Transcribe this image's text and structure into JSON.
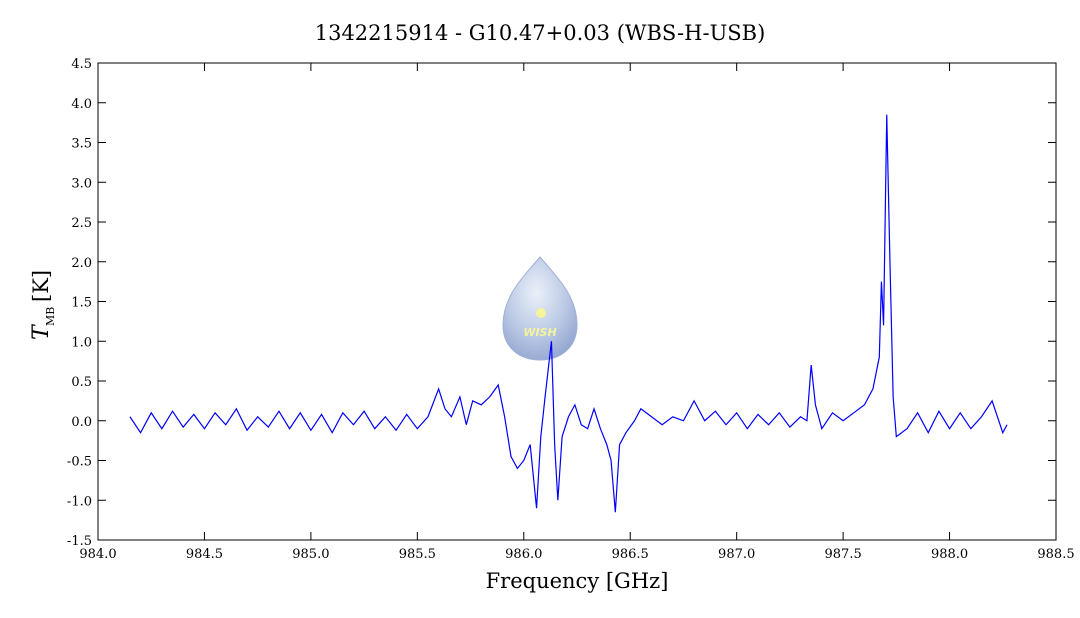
{
  "chart_data": {
    "type": "line",
    "title": "1342215914 - G10.47+0.03 (WBS-H-USB)",
    "x_label": "Frequency [GHz]",
    "y_label": {
      "symbol": "T",
      "subscript": "MB",
      "unit": "[K]"
    },
    "watermark": "WISH",
    "xlim": [
      984.0,
      988.5
    ],
    "ylim": [
      -1.5,
      4.5
    ],
    "xticks": [
      {
        "value": 984.0,
        "label": "984.0"
      },
      984.5,
      {
        "value": 985.0,
        "label": "985.0"
      },
      985.5,
      {
        "value": 986.0,
        "label": "986.0"
      },
      986.5,
      {
        "value": 987.0,
        "label": "987.0"
      },
      987.5,
      {
        "value": 988.0,
        "label": "988.0"
      },
      988.5
    ],
    "yticks": [
      4.5,
      {
        "value": 4.0,
        "label": "4.0"
      },
      3.5,
      {
        "value": 3.0,
        "label": "3.0"
      },
      2.5,
      {
        "value": 2.0,
        "label": "2.0"
      },
      1.5,
      {
        "value": 1.0,
        "label": "1.0"
      },
      0.5,
      {
        "value": 0.0,
        "label": "0.0"
      },
      -0.5,
      {
        "value": -1.0,
        "label": "-1.0"
      },
      -1.5
    ],
    "x": [
      984.15,
      984.2,
      984.25,
      984.3,
      984.35,
      984.4,
      984.45,
      984.5,
      984.55,
      984.6,
      984.65,
      984.7,
      984.75,
      984.8,
      984.85,
      984.9,
      984.95,
      985.0,
      985.05,
      985.1,
      985.15,
      985.2,
      985.25,
      985.3,
      985.35,
      985.4,
      985.45,
      985.5,
      985.55,
      985.6,
      985.63,
      985.66,
      985.7,
      985.73,
      985.76,
      985.8,
      985.84,
      985.88,
      985.91,
      985.94,
      985.97,
      986.0,
      986.03,
      986.06,
      986.08,
      986.1,
      986.13,
      986.145,
      986.16,
      986.18,
      986.21,
      986.24,
      986.27,
      986.3,
      986.33,
      986.36,
      986.39,
      986.41,
      986.43,
      986.45,
      986.48,
      986.52,
      986.55,
      986.6,
      986.65,
      986.7,
      986.75,
      986.8,
      986.85,
      986.9,
      986.95,
      987.0,
      987.05,
      987.1,
      987.15,
      987.2,
      987.25,
      987.3,
      987.33,
      987.35,
      987.37,
      987.4,
      987.45,
      987.5,
      987.55,
      987.6,
      987.64,
      987.67,
      987.68,
      987.69,
      987.705,
      987.72,
      987.735,
      987.75,
      987.8,
      987.85,
      987.9,
      987.95,
      988.0,
      988.05,
      988.1,
      988.15,
      988.2,
      988.25,
      988.27
    ],
    "series": [
      {
        "name": "WBS-H-USB",
        "color": "#0000ff",
        "values": [
          0.05,
          -0.15,
          0.1,
          -0.1,
          0.12,
          -0.08,
          0.08,
          -0.1,
          0.1,
          -0.05,
          0.15,
          -0.12,
          0.05,
          -0.08,
          0.12,
          -0.1,
          0.1,
          -0.12,
          0.08,
          -0.15,
          0.1,
          -0.05,
          0.12,
          -0.1,
          0.05,
          -0.12,
          0.08,
          -0.1,
          0.05,
          0.4,
          0.15,
          0.05,
          0.3,
          -0.05,
          0.25,
          0.2,
          0.3,
          0.45,
          0.05,
          -0.45,
          -0.6,
          -0.5,
          -0.3,
          -1.1,
          -0.2,
          0.3,
          1.0,
          -0.3,
          -1.0,
          -0.2,
          0.05,
          0.2,
          -0.05,
          -0.1,
          0.15,
          -0.1,
          -0.3,
          -0.5,
          -1.15,
          -0.3,
          -0.15,
          0.0,
          0.15,
          0.05,
          -0.05,
          0.05,
          0.0,
          0.25,
          0.0,
          0.12,
          -0.05,
          0.1,
          -0.1,
          0.08,
          -0.05,
          0.1,
          -0.08,
          0.05,
          0.0,
          0.7,
          0.2,
          -0.1,
          0.1,
          0.0,
          0.1,
          0.2,
          0.4,
          0.8,
          1.75,
          1.2,
          3.85,
          2.0,
          0.3,
          -0.2,
          -0.1,
          0.1,
          -0.15,
          0.12,
          -0.1,
          0.1,
          -0.1,
          0.05,
          0.25,
          -0.15,
          -0.05
        ]
      }
    ]
  }
}
